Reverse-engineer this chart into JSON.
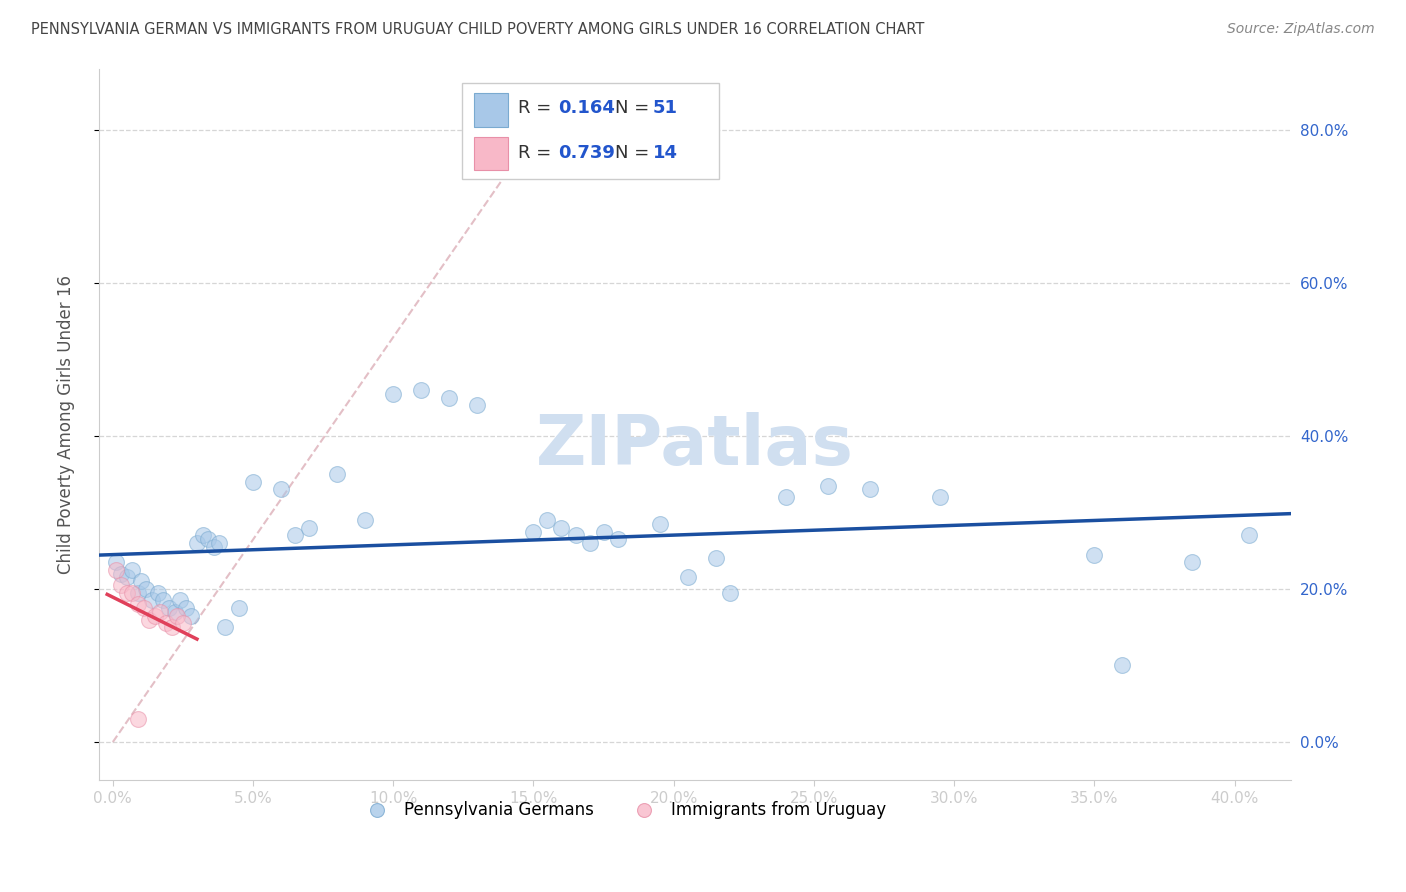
{
  "title": "PENNSYLVANIA GERMAN VS IMMIGRANTS FROM URUGUAY CHILD POVERTY AMONG GIRLS UNDER 16 CORRELATION CHART",
  "source": "Source: ZipAtlas.com",
  "ylabel_label": "Child Poverty Among Girls Under 16",
  "background_color": "#ffffff",
  "grid_color": "#cccccc",
  "xlim": [
    -0.005,
    0.42
  ],
  "ylim": [
    -0.05,
    0.88
  ],
  "xticks": [
    0.0,
    0.05,
    0.1,
    0.15,
    0.2,
    0.25,
    0.3,
    0.35,
    0.4
  ],
  "yticks": [
    0.0,
    0.2,
    0.4,
    0.6,
    0.8
  ],
  "blue_color": "#a8c8e8",
  "blue_edge_color": "#7aaad0",
  "blue_line_color": "#1a4fa0",
  "pink_color": "#f8b8c8",
  "pink_edge_color": "#e890a8",
  "pink_line_color": "#e0405a",
  "dashed_color": "#e0b8c0",
  "watermark": "ZIPatlas",
  "watermark_color": "#d0dff0",
  "scatter_size": 130,
  "scatter_alpha": 0.55,
  "blue_points_x": [
    0.001,
    0.003,
    0.005,
    0.007,
    0.009,
    0.01,
    0.012,
    0.014,
    0.016,
    0.018,
    0.02,
    0.022,
    0.024,
    0.026,
    0.028,
    0.03,
    0.032,
    0.034,
    0.036,
    0.038,
    0.04,
    0.045,
    0.05,
    0.06,
    0.065,
    0.07,
    0.08,
    0.09,
    0.1,
    0.11,
    0.12,
    0.13,
    0.15,
    0.155,
    0.16,
    0.165,
    0.17,
    0.175,
    0.18,
    0.195,
    0.205,
    0.215,
    0.22,
    0.24,
    0.255,
    0.27,
    0.295,
    0.35,
    0.36,
    0.385,
    0.405
  ],
  "blue_points_y": [
    0.235,
    0.22,
    0.215,
    0.225,
    0.195,
    0.21,
    0.2,
    0.185,
    0.195,
    0.185,
    0.175,
    0.17,
    0.185,
    0.175,
    0.165,
    0.26,
    0.27,
    0.265,
    0.255,
    0.26,
    0.15,
    0.175,
    0.34,
    0.33,
    0.27,
    0.28,
    0.35,
    0.29,
    0.455,
    0.46,
    0.45,
    0.44,
    0.275,
    0.29,
    0.28,
    0.27,
    0.26,
    0.275,
    0.265,
    0.285,
    0.215,
    0.24,
    0.195,
    0.32,
    0.335,
    0.33,
    0.32,
    0.245,
    0.1,
    0.235,
    0.27
  ],
  "pink_points_x": [
    0.001,
    0.003,
    0.005,
    0.007,
    0.009,
    0.011,
    0.013,
    0.015,
    0.017,
    0.019,
    0.021,
    0.023,
    0.025,
    0.009
  ],
  "pink_points_y": [
    0.225,
    0.205,
    0.195,
    0.195,
    0.18,
    0.175,
    0.16,
    0.165,
    0.17,
    0.155,
    0.15,
    0.165,
    0.155,
    0.03
  ]
}
